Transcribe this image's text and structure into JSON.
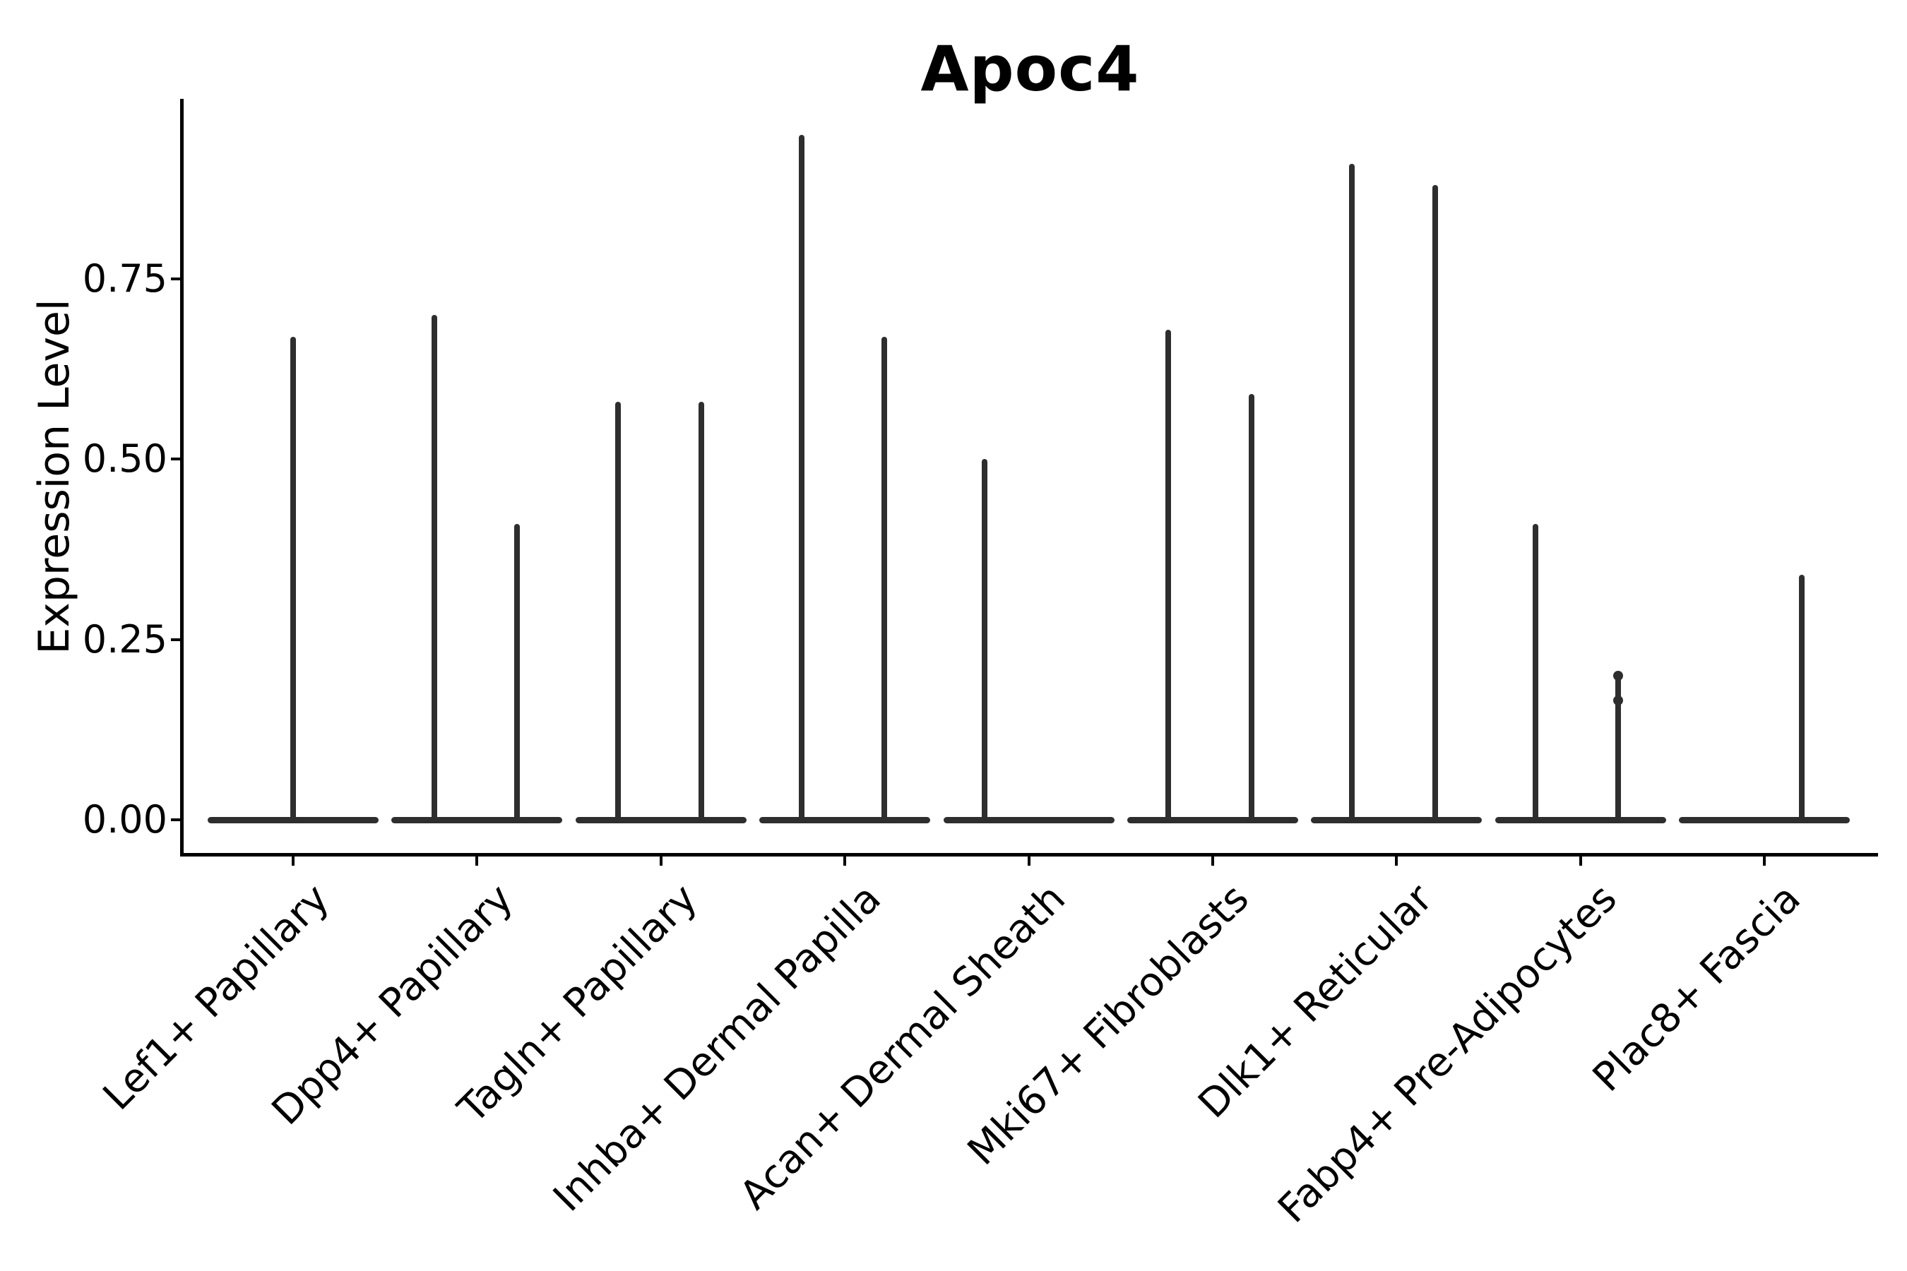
{
  "chart_data": {
    "type": "violin",
    "title": "Apoc4",
    "ylabel": "Expression Level",
    "yticks": [
      {
        "value": 0.0,
        "label": "0.00"
      },
      {
        "value": 0.25,
        "label": "0.25"
      },
      {
        "value": 0.5,
        "label": "0.50"
      },
      {
        "value": 0.75,
        "label": "0.75"
      }
    ],
    "ylim": [
      -0.05,
      1.0
    ],
    "grid": false,
    "legend": "none",
    "categories": [
      {
        "label": "Lef1+ Papillary",
        "violins": [
          {
            "offset": 0,
            "max": 0.67
          }
        ]
      },
      {
        "label": "Dpp4+ Papillary",
        "violins": [
          {
            "offset": -60,
            "max": 0.7
          },
          {
            "offset": 57,
            "max": 0.41
          }
        ]
      },
      {
        "label": "Tagln+ Papillary",
        "violins": [
          {
            "offset": -61,
            "max": 0.58
          },
          {
            "offset": 57,
            "max": 0.58
          }
        ]
      },
      {
        "label": "Inhba+ Dermal Papilla",
        "violins": [
          {
            "offset": -61,
            "max": 0.95
          },
          {
            "offset": 56,
            "max": 0.67
          }
        ]
      },
      {
        "label": "Acan+ Dermal Sheath",
        "violins": [
          {
            "offset": -63,
            "max": 0.5
          }
        ]
      },
      {
        "label": "Mki67+ Fibroblasts",
        "violins": [
          {
            "offset": -63,
            "max": 0.68
          },
          {
            "offset": 55,
            "max": 0.59
          }
        ]
      },
      {
        "label": "Dlk1+ Reticular",
        "violins": [
          {
            "offset": -63,
            "max": 0.91
          },
          {
            "offset": 55,
            "max": 0.88
          }
        ]
      },
      {
        "label": "Fabp4+ Pre-Adipocytes",
        "violins": [
          {
            "offset": -64,
            "max": 0.41
          },
          {
            "offset": 53,
            "max": 0.2,
            "knobs": [
              0.2,
              0.165
            ]
          }
        ]
      },
      {
        "label": "Plac8+ Fascia",
        "violins": [
          {
            "offset": 53,
            "max": 0.34
          }
        ]
      }
    ],
    "colors": {
      "violin": "#2e2e2e",
      "axis": "#000000",
      "text": "#000000"
    }
  }
}
